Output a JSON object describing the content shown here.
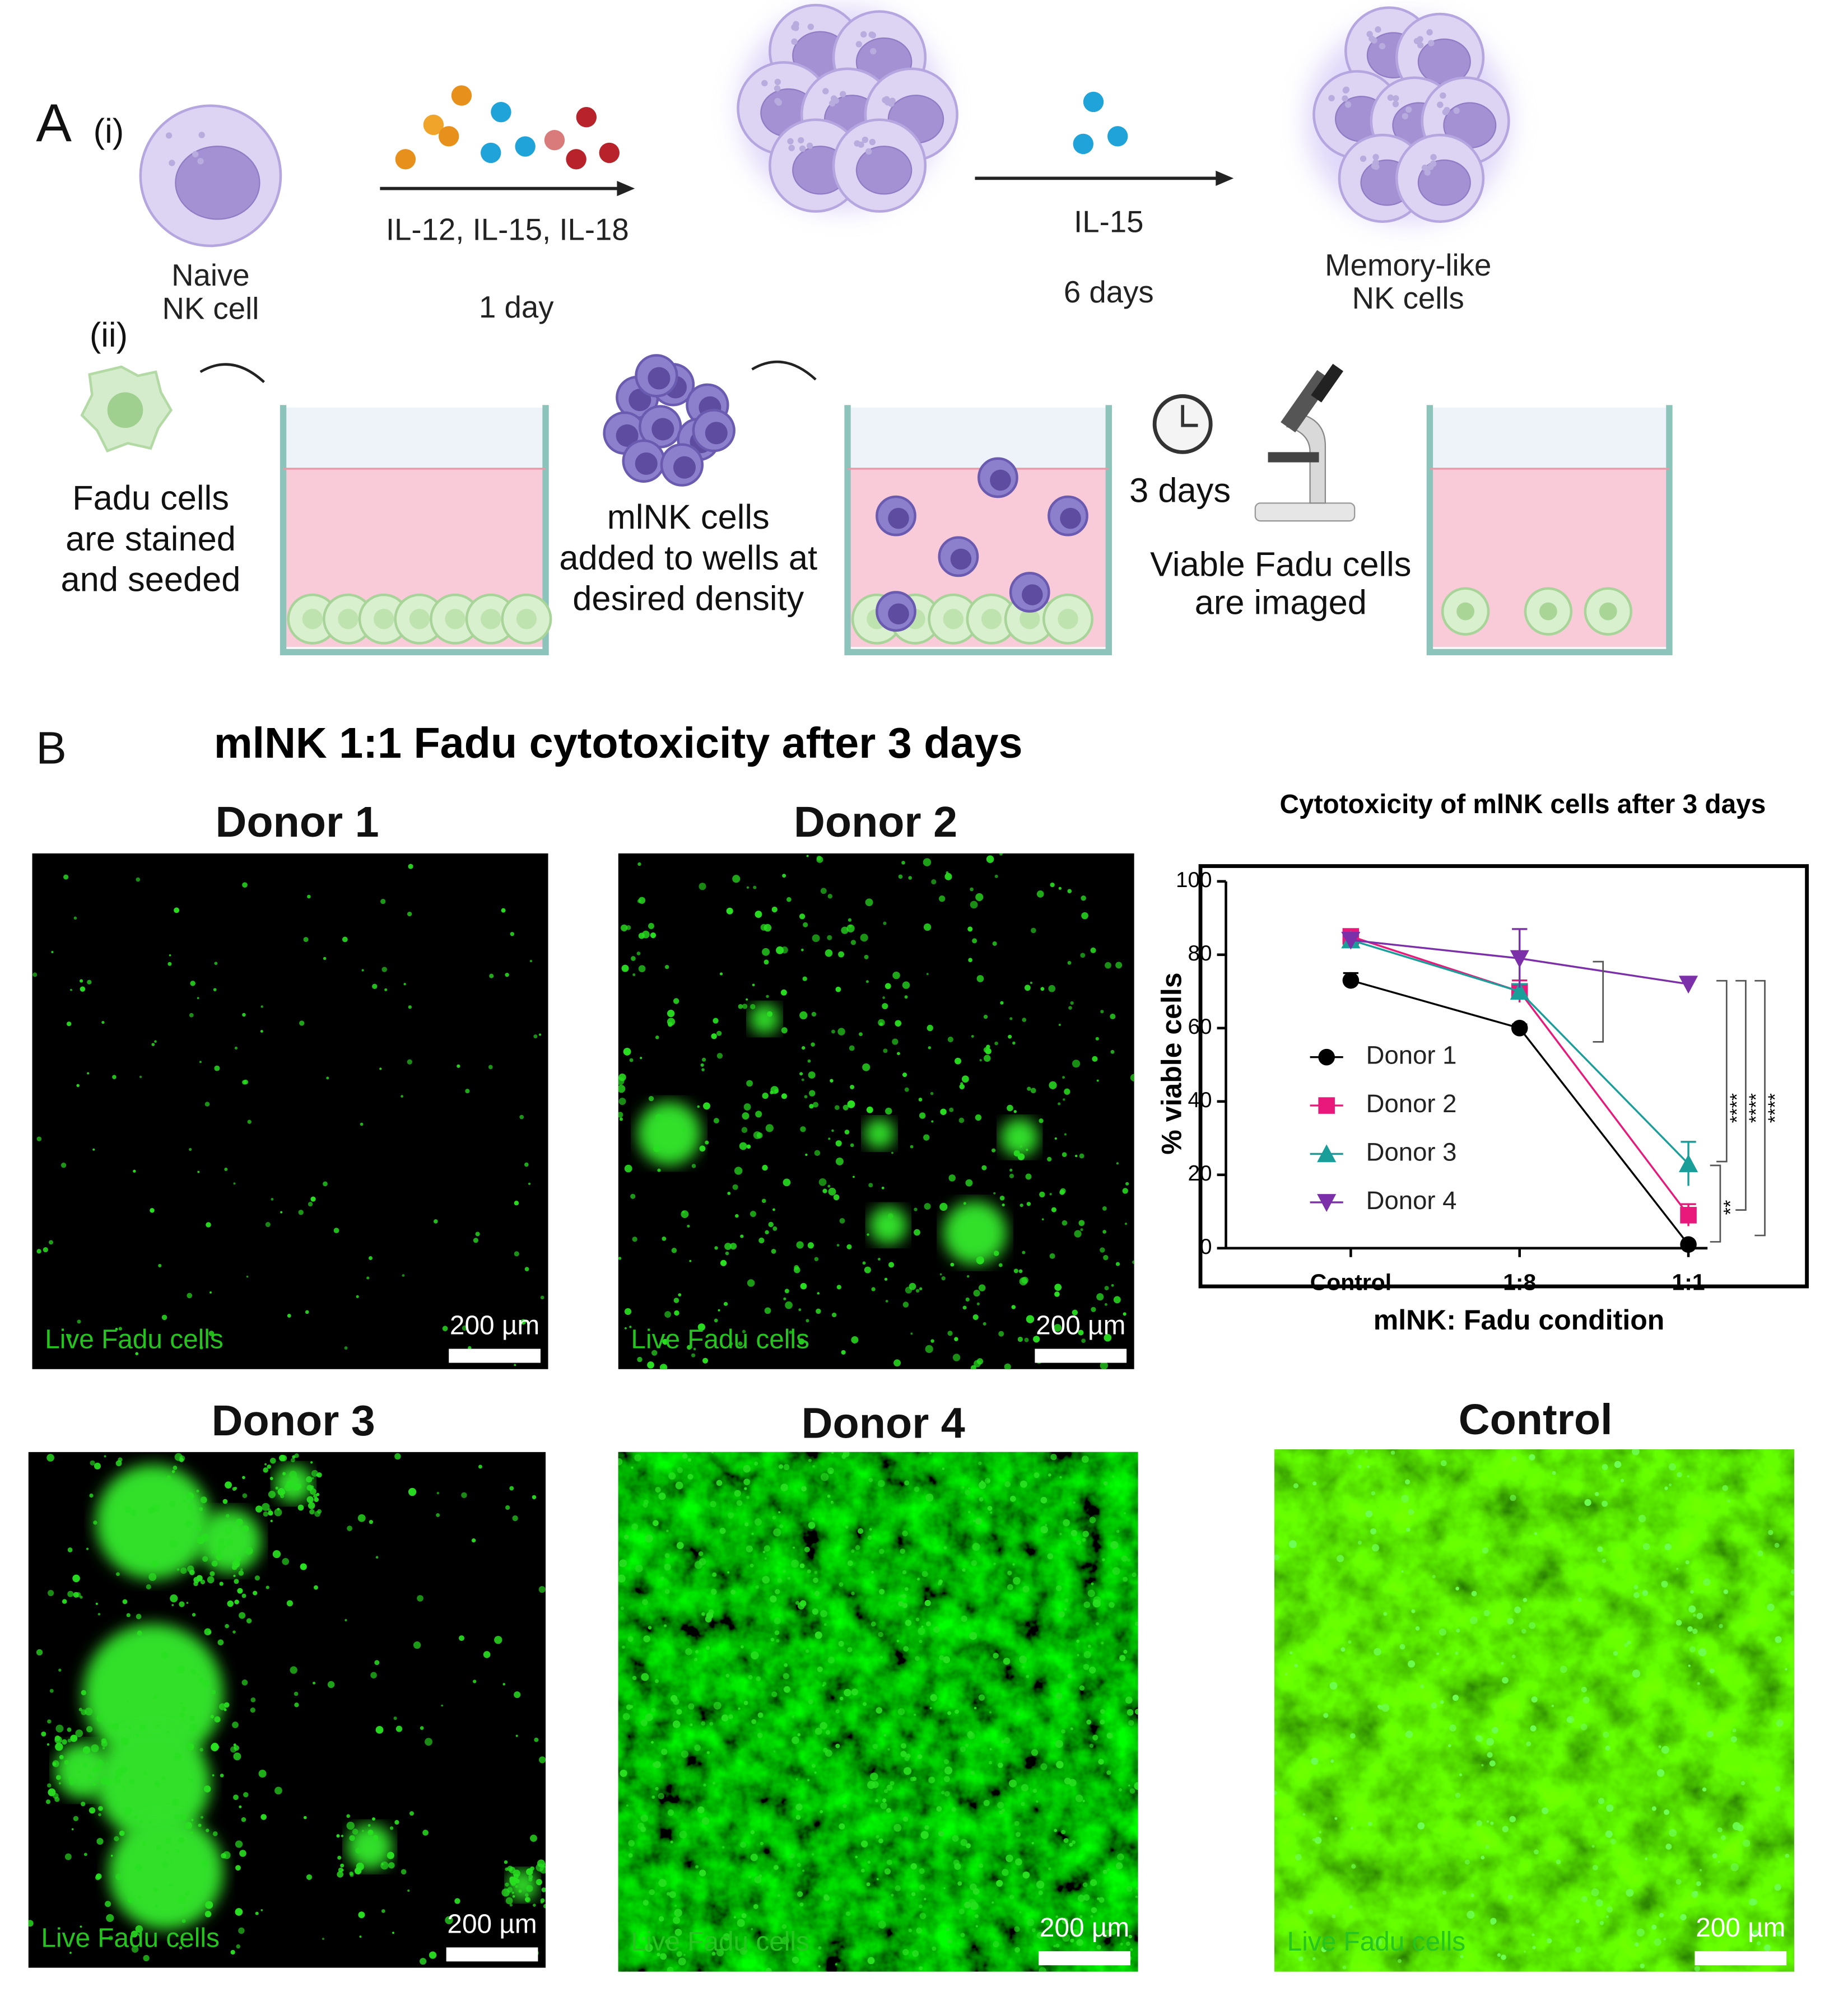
{
  "panel_a": {
    "label": "A",
    "part_i": "(i)",
    "naive": [
      "Naive",
      "NK cell"
    ],
    "cytokines": "IL-12, IL-15, IL-18",
    "day1": "1 day",
    "il15": "IL-15",
    "days6": "6 days",
    "memory": [
      "Memory-like",
      "NK cells"
    ],
    "part_ii": "(ii)",
    "fadu": [
      "Fadu cells",
      "are stained",
      "and seeded"
    ],
    "mlnk": [
      "mlNK cells",
      "added to wells at",
      "desired density"
    ],
    "days3": "3 days",
    "imaged": [
      "Viable Fadu cells",
      "are imaged"
    ]
  },
  "panel_b": {
    "label": "B",
    "title": "mlNK 1:1 Fadu cytotoxicity after 3 days",
    "images": [
      {
        "title": "Donor 1",
        "caption": "Live Fadu cells",
        "scale": "200 µm"
      },
      {
        "title": "Donor 2",
        "caption": "Live Fadu cells",
        "scale": "200 µm"
      },
      {
        "title": "Donor 3",
        "caption": "Live Fadu cells",
        "scale": "200 µm"
      },
      {
        "title": "Donor 4",
        "caption": "Live Fadu cells",
        "scale": "200 µm"
      },
      {
        "title": "Control",
        "caption": "Live Fadu cells",
        "scale": "200 µm"
      }
    ]
  },
  "chart_data": {
    "type": "line",
    "title": "Cytotoxicity of mlNK cells after 3 days",
    "x_label": "mlNK: Fadu condition",
    "y_label": "% viable cells",
    "categories": [
      "Control",
      "1:8",
      "1:1"
    ],
    "series": [
      {
        "name": "Donor 1",
        "color": "#000000",
        "marker": "circle",
        "values": [
          73,
          60,
          1
        ],
        "errors": [
          2,
          1,
          0
        ]
      },
      {
        "name": "Donor 2",
        "color": "#e8197a",
        "marker": "square",
        "values": [
          85,
          70,
          9
        ],
        "errors": [
          1,
          3,
          3
        ]
      },
      {
        "name": "Donor 3",
        "color": "#1a9e9a",
        "marker": "triangle-up",
        "values": [
          84,
          70,
          23
        ],
        "errors": [
          1,
          2,
          6
        ]
      },
      {
        "name": "Donor 4",
        "color": "#7b2fa8",
        "marker": "triangle-down",
        "values": [
          84,
          79,
          72
        ],
        "errors": [
          1,
          8,
          2
        ]
      }
    ],
    "ylim": [
      0,
      100
    ],
    "yticks": [
      0,
      20,
      40,
      60,
      80,
      100
    ],
    "legend": "left",
    "significance": [
      "****",
      "****",
      "****",
      "**"
    ]
  }
}
